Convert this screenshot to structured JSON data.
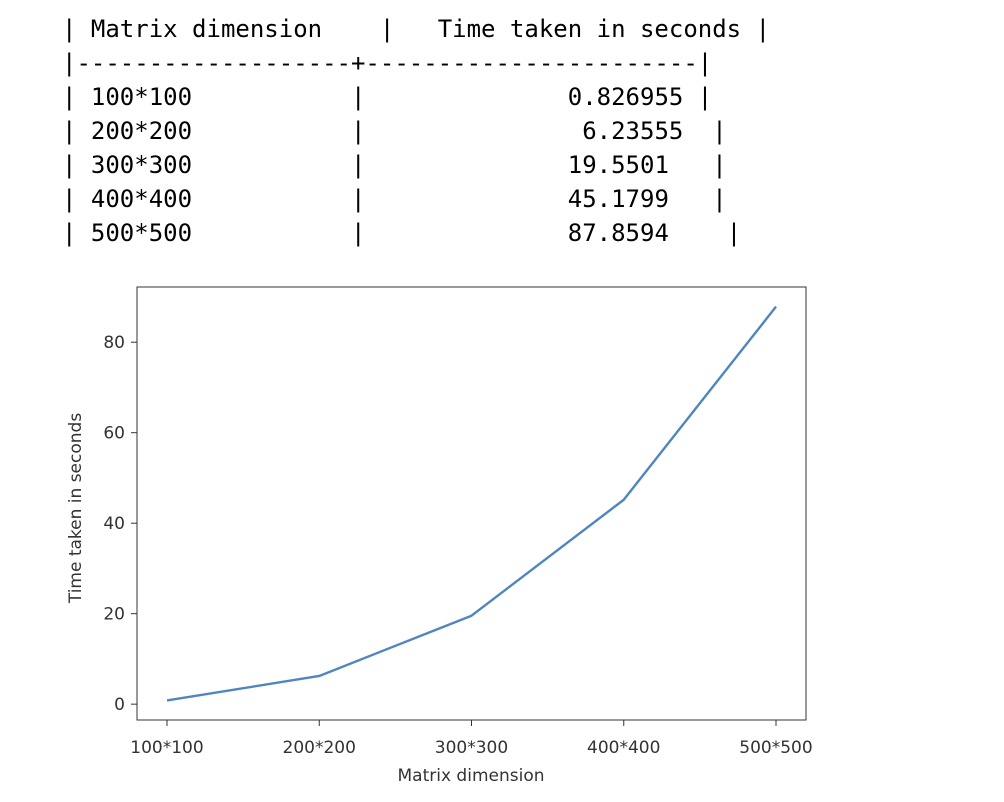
{
  "table": {
    "header": [
      "Matrix dimension",
      "Time taken in seconds"
    ],
    "rows": [
      [
        "100*100",
        "0.826955"
      ],
      [
        "200*200",
        "6.23555"
      ],
      [
        "300*300",
        "19.5501"
      ],
      [
        "400*400",
        "45.1799"
      ],
      [
        "500*500",
        "87.8594"
      ]
    ]
  },
  "chart_data": {
    "type": "line",
    "categories": [
      "100*100",
      "200*200",
      "300*300",
      "400*400",
      "500*500"
    ],
    "values": [
      0.826955,
      6.23555,
      19.5501,
      45.1799,
      87.8594
    ],
    "title": "",
    "xlabel": "Matrix dimension",
    "ylabel": "Time taken in seconds",
    "ylim": [
      -3.5,
      92.2
    ],
    "yticks": [
      0,
      20,
      40,
      60,
      80
    ],
    "grid": false,
    "line_color": "#4f86be"
  }
}
